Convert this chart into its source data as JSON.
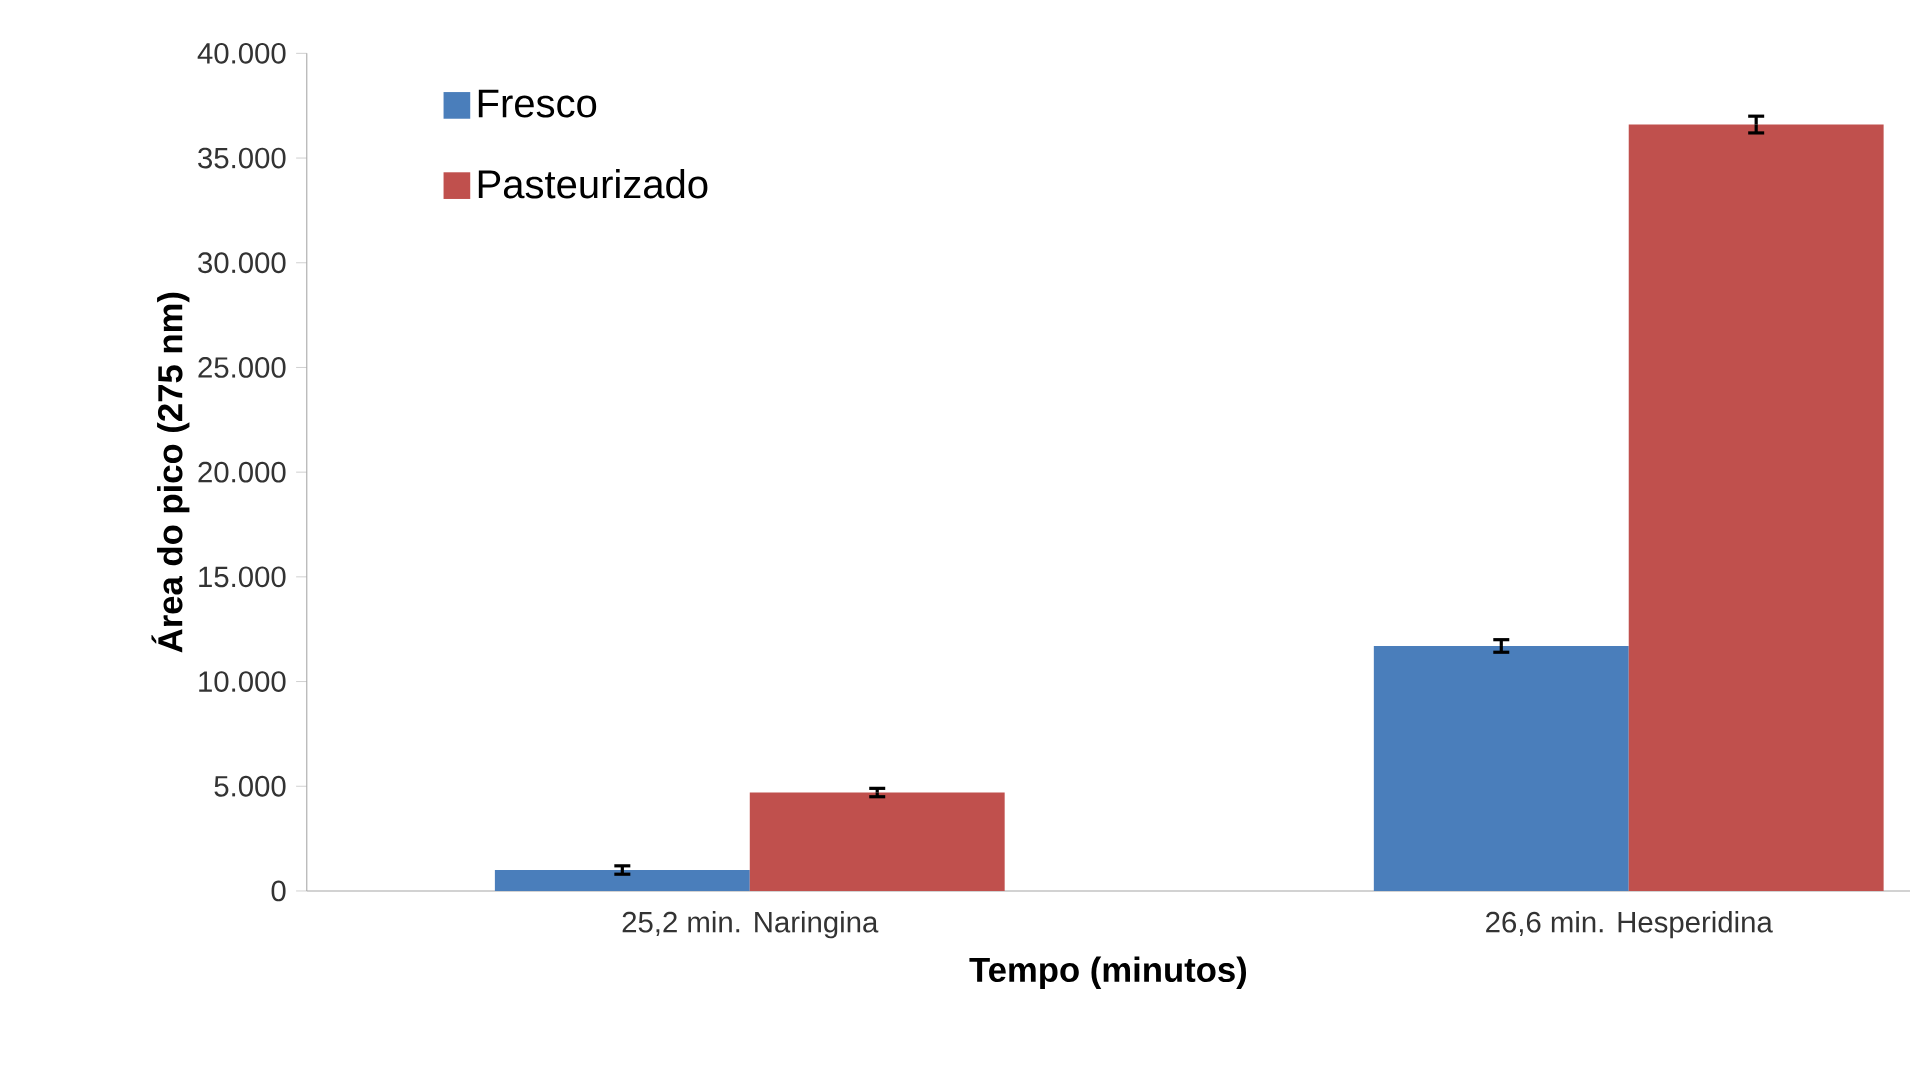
{
  "chart_data": {
    "type": "bar",
    "xlabel": "Tempo (minutos)",
    "ylabel": "Área do pico (275 nm)",
    "categories": [
      "25,2 min. Naringina",
      "26,6 min. Hesperidina"
    ],
    "series": [
      {
        "name": "Fresco",
        "color": "#4a7ebb",
        "values": [
          1000,
          11700
        ],
        "errors": [
          200,
          300
        ]
      },
      {
        "name": "Pasteurizado",
        "color": "#c0504d",
        "values": [
          4700,
          36600
        ],
        "errors": [
          200,
          400
        ]
      }
    ],
    "ylim": [
      0,
      40000
    ],
    "yticks": [
      0,
      {
        "value": 5000,
        "label": "5.000"
      },
      {
        "value": 10000,
        "label": "10.000"
      },
      {
        "value": 15000,
        "label": "15.000"
      },
      {
        "value": 20000,
        "label": "20.000"
      },
      {
        "value": 25000,
        "label": "25.000"
      },
      {
        "value": 30000,
        "label": "30.000"
      },
      {
        "value": 35000,
        "label": "35.000"
      },
      {
        "value": 40000,
        "label": "40.000"
      }
    ],
    "legend": "top left"
  }
}
